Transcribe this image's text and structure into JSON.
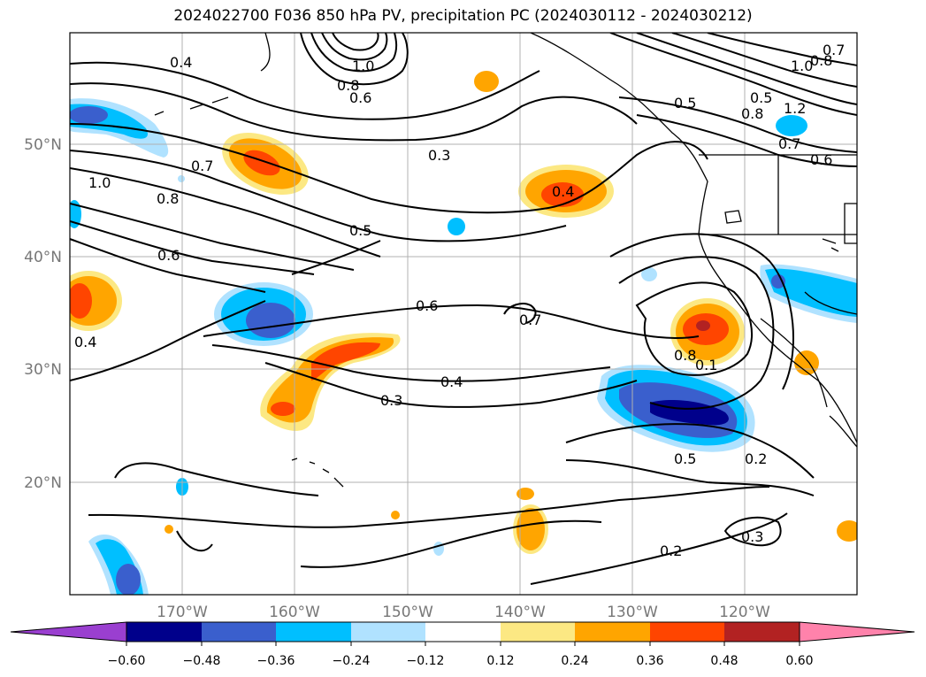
{
  "title": "2024022700 F036 850 hPa PV, precipitation PC (2024030112 - 2024030212)",
  "map": {
    "lat_labels": [
      "50°N",
      "40°N",
      "30°N",
      "20°N"
    ],
    "lon_labels": [
      "170°W",
      "160°W",
      "150°W",
      "140°W",
      "130°W",
      "120°W"
    ],
    "contour_labels": [
      "0.4",
      "1.0",
      "0.8",
      "0.6",
      "0.3",
      "0.7",
      "0.5",
      "0.8",
      "1.0",
      "0.6",
      "0.4",
      "0.5",
      "0.6",
      "0.4",
      "0.3",
      "0.7",
      "0.4",
      "0.8",
      "0.1",
      "0.5",
      "0.2",
      "0.2",
      "0.3",
      "1.0",
      "0.8",
      "1.2",
      "0.5",
      "0.7",
      "0.6",
      "0.7",
      "0.8"
    ],
    "colors": {
      "land_line": "#000000",
      "grid": "#b0b0b0"
    }
  },
  "colorbar": {
    "ticks": [
      "−0.60",
      "−0.48",
      "−0.36",
      "−0.24",
      "−0.12",
      "0.12",
      "0.24",
      "0.36",
      "0.48",
      "0.60"
    ],
    "colors": [
      "#9a3fd0",
      "#00008b",
      "#3a5fcd",
      "#00bfff",
      "#b0e2ff",
      "#ffffff",
      "#fce883",
      "#ffa500",
      "#ff4500",
      "#b22222",
      "#ff82ab"
    ]
  }
}
